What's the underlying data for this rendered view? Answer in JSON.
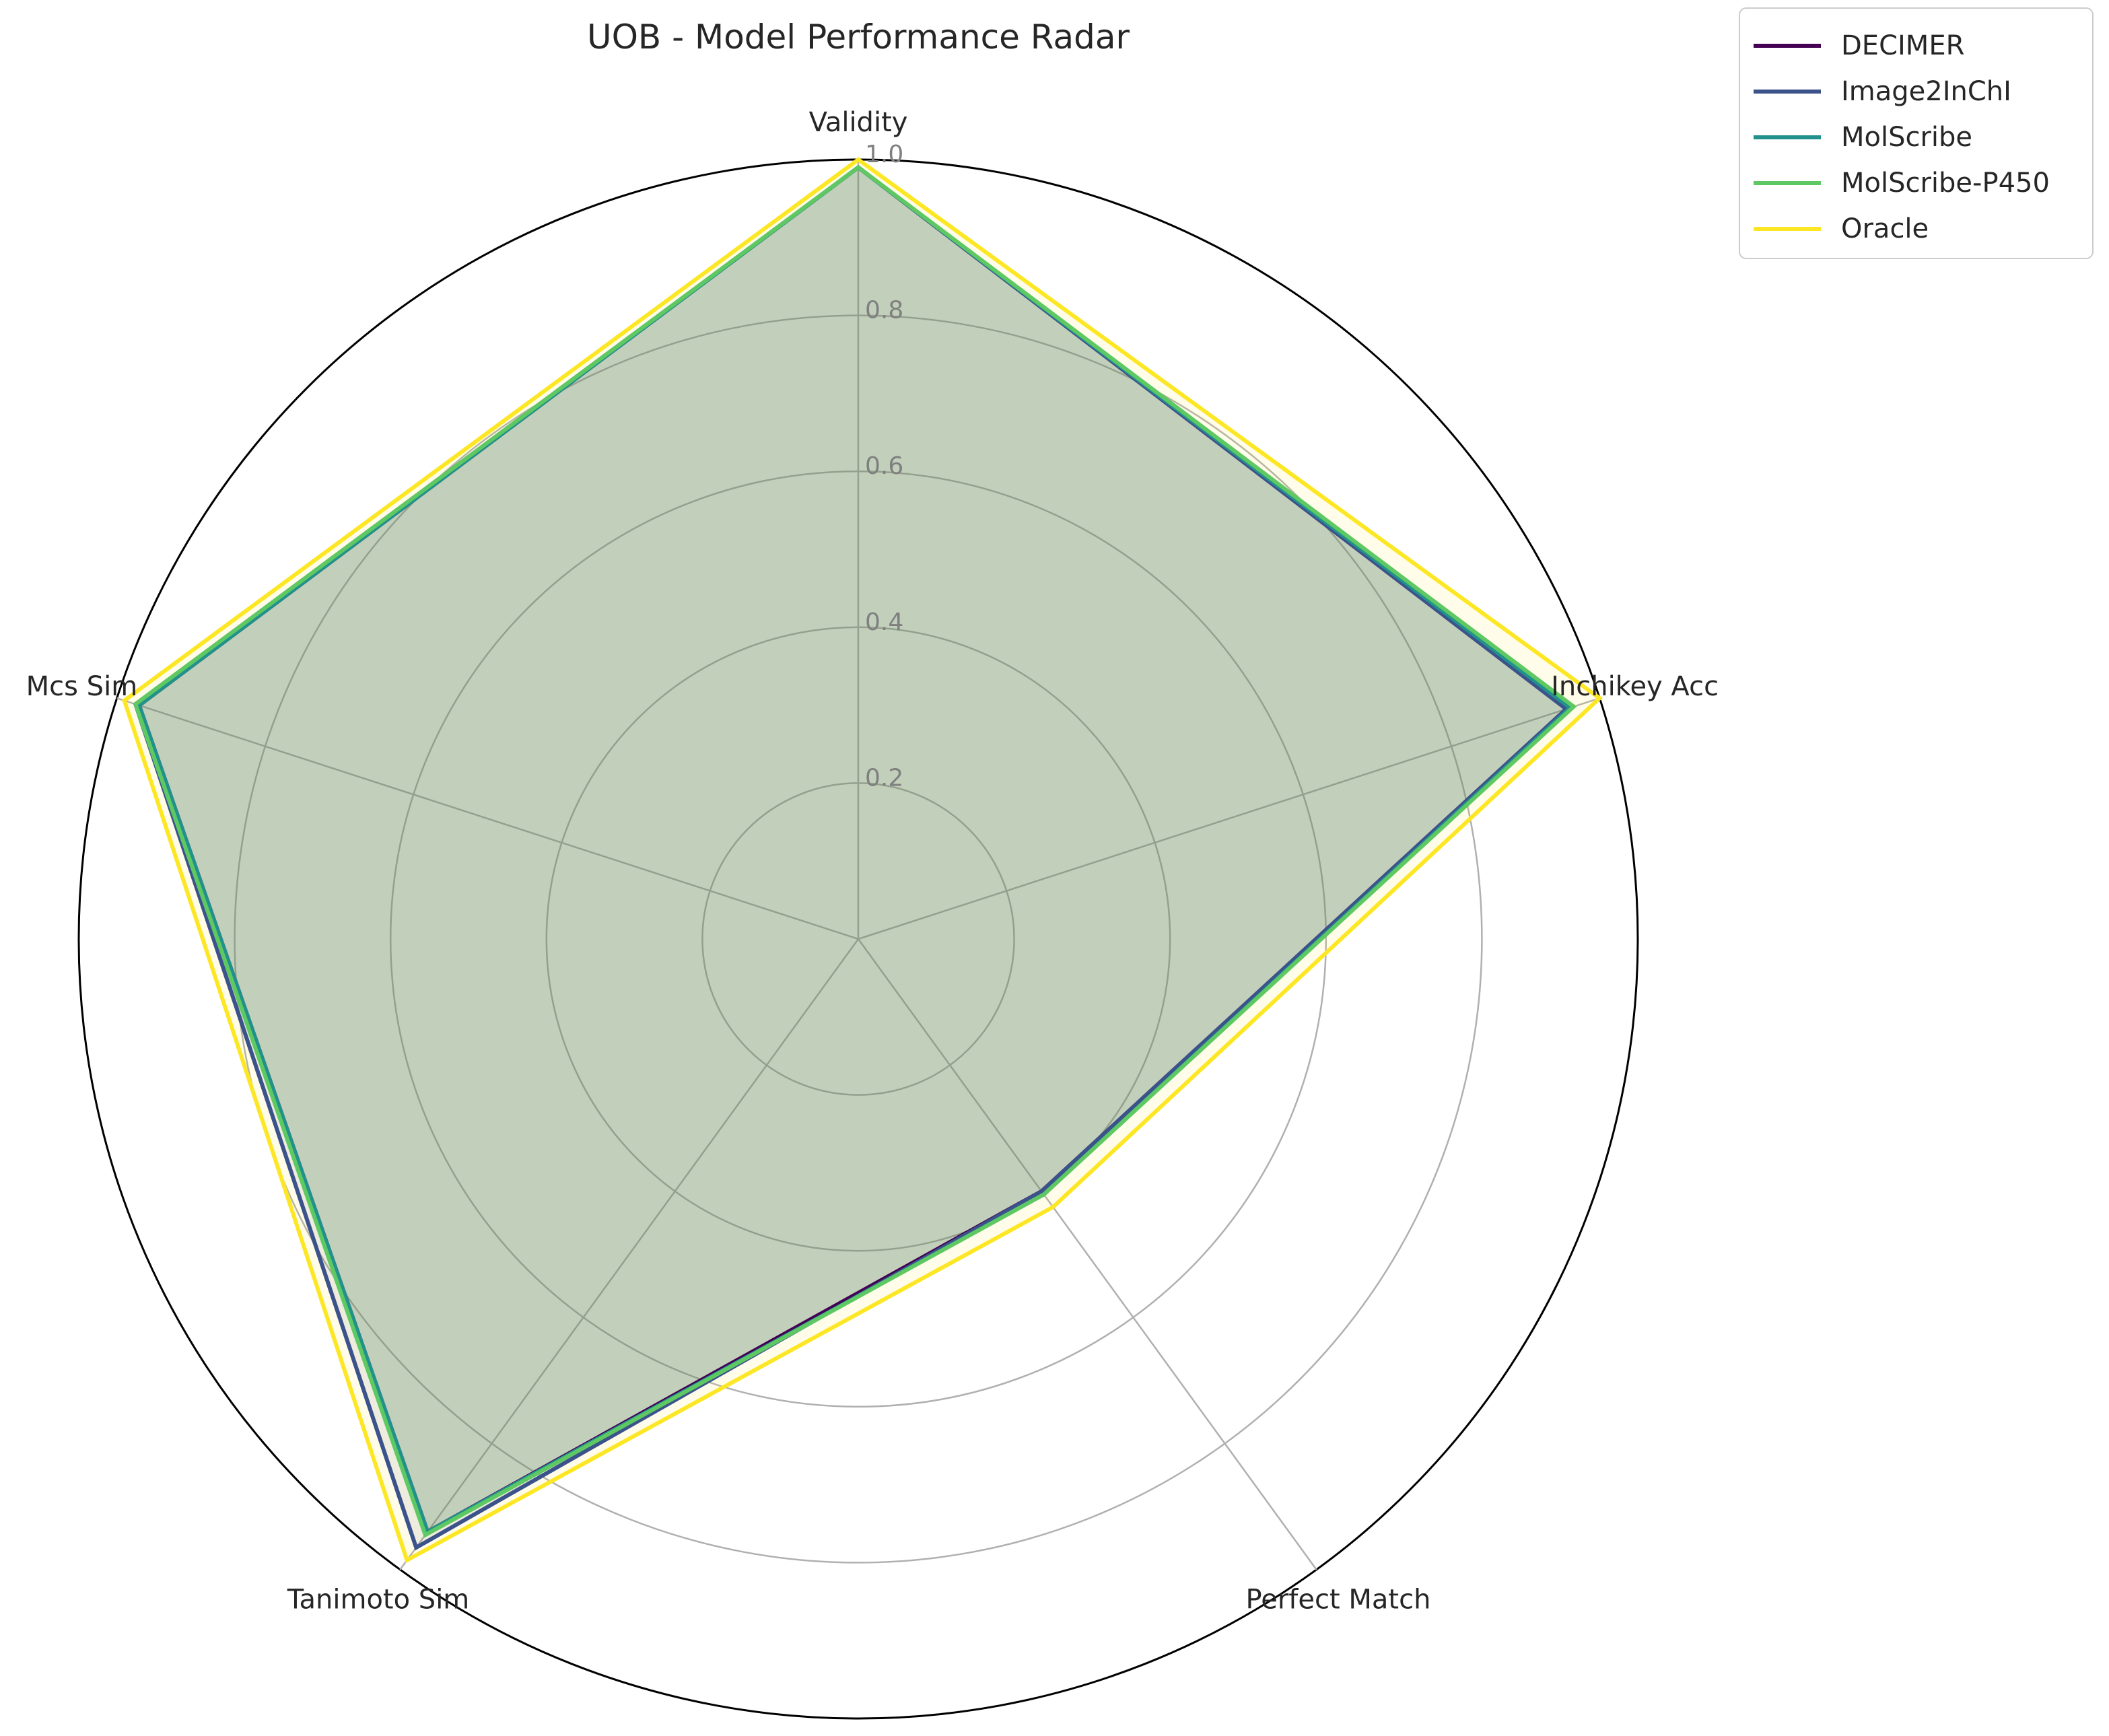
{
  "chart_data": {
    "type": "radar",
    "title": "UOB - Model Performance Radar",
    "axes": [
      "Validity",
      "Inchikey Acc",
      "Perfect Match",
      "Tanimoto Sim",
      "Mcs Sim"
    ],
    "rlim": [
      0,
      1.0
    ],
    "rticks": [
      0.2,
      0.4,
      0.6,
      0.8,
      1.0
    ],
    "rtick_labels": [
      "0.2",
      "0.4",
      "0.6",
      "0.8",
      "1.0"
    ],
    "grid": true,
    "legend_position": "top-right",
    "series": [
      {
        "name": "DECIMER",
        "color": "#440154",
        "values": [
          0.99,
          0.955,
          0.4,
          0.94,
          0.97
        ]
      },
      {
        "name": "Image2InChI",
        "color": "#3b528b",
        "values": [
          0.99,
          0.955,
          0.4,
          0.965,
          0.975
        ]
      },
      {
        "name": "MolScribe",
        "color": "#21918c",
        "values": [
          0.99,
          0.96,
          0.405,
          0.94,
          0.97
        ]
      },
      {
        "name": "MolScribe-P450",
        "color": "#5ec962",
        "values": [
          0.99,
          0.965,
          0.405,
          0.945,
          0.975
        ]
      },
      {
        "name": "Oracle",
        "color": "#fde725",
        "values": [
          1.0,
          1.0,
          0.425,
          0.985,
          0.99
        ]
      }
    ]
  }
}
